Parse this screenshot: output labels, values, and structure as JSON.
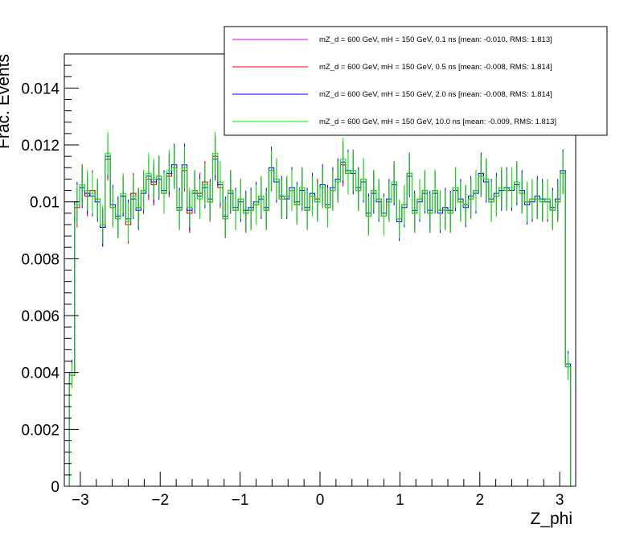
{
  "chart_data": {
    "type": "line",
    "xlabel": "Z_phi",
    "ylabel": "Frac. Events",
    "xlim": [
      -3.2,
      3.2
    ],
    "ylim": [
      0,
      0.0152
    ],
    "x_ticks": [
      -3,
      -2,
      -1,
      0,
      1,
      2,
      3
    ],
    "x_tick_labels": [
      "−3",
      "−2",
      "−1",
      "0",
      "1",
      "2",
      "3"
    ],
    "y_ticks": [
      0,
      0.002,
      0.004,
      0.006,
      0.008,
      0.01,
      0.012,
      0.014
    ],
    "y_tick_labels": [
      "0",
      "0.002",
      "0.004",
      "0.006",
      "0.008",
      "0.01",
      "0.012",
      "0.014"
    ],
    "grid": false,
    "legend_position": "top-right",
    "bins": 100,
    "bin_range": [
      -3.2,
      3.2
    ],
    "series": [
      {
        "name": "mZ_d = 600 GeV, mH = 150 GeV, 0.1 ns [mean: -0.010, RMS: 1.813]",
        "color": "#e000e0",
        "values": [
          0.0,
          0.0039,
          0.0098,
          0.0106,
          0.0102,
          0.0104,
          0.0101,
          0.0091,
          0.0115,
          0.0098,
          0.0094,
          0.0102,
          0.0092,
          0.0103,
          0.0098,
          0.0104,
          0.0108,
          0.0106,
          0.0109,
          0.0103,
          0.0109,
          0.0112,
          0.0097,
          0.0111,
          0.0096,
          0.0104,
          0.0103,
          0.0107,
          0.01,
          0.0116,
          0.0105,
          0.0094,
          0.0104,
          0.0097,
          0.0101,
          0.0096,
          0.0097,
          0.0099,
          0.0102,
          0.0097,
          0.0111,
          0.0108,
          0.0101,
          0.0102,
          0.0104,
          0.0099,
          0.0105,
          0.0097,
          0.0102,
          0.0101,
          0.0105,
          0.0098,
          0.0104,
          0.0107,
          0.0113,
          0.011,
          0.0111,
          0.0104,
          0.0108,
          0.0095,
          0.0104,
          0.0101,
          0.0095,
          0.01,
          0.0107,
          0.0094,
          0.0099,
          0.011,
          0.0096,
          0.0101,
          0.0104,
          0.0096,
          0.0104,
          0.0097,
          0.0097,
          0.0096,
          0.0105,
          0.01,
          0.0099,
          0.0101,
          0.0104,
          0.0109,
          0.0108,
          0.01,
          0.0102,
          0.0105,
          0.0104,
          0.0105,
          0.0107,
          0.0103,
          0.01,
          0.0101,
          0.0101,
          0.01,
          0.0101,
          0.0097,
          0.01,
          0.011,
          0.0042,
          0.0
        ]
      },
      {
        "name": "mZ_d = 600 GeV, mH = 150 GeV, 0.5 ns [mean: -0.008, RMS: 1.814]",
        "color": "#ff0000",
        "values": [
          0.0,
          0.0039,
          0.0098,
          0.0106,
          0.0102,
          0.0104,
          0.0101,
          0.0091,
          0.0115,
          0.0098,
          0.0094,
          0.0102,
          0.0092,
          0.0103,
          0.0098,
          0.0104,
          0.0108,
          0.0106,
          0.0109,
          0.0103,
          0.0109,
          0.0112,
          0.0097,
          0.0111,
          0.0096,
          0.0104,
          0.0103,
          0.0107,
          0.01,
          0.0116,
          0.0105,
          0.0094,
          0.0104,
          0.0097,
          0.0101,
          0.0096,
          0.0097,
          0.0099,
          0.0102,
          0.0097,
          0.0111,
          0.0108,
          0.0101,
          0.0102,
          0.0104,
          0.0099,
          0.0105,
          0.0097,
          0.0102,
          0.0101,
          0.0105,
          0.0098,
          0.0104,
          0.0107,
          0.0113,
          0.011,
          0.0111,
          0.0104,
          0.0108,
          0.0095,
          0.0104,
          0.0101,
          0.0095,
          0.01,
          0.0107,
          0.0094,
          0.0099,
          0.011,
          0.0096,
          0.0101,
          0.0104,
          0.0096,
          0.0104,
          0.0097,
          0.0097,
          0.0096,
          0.0105,
          0.01,
          0.0099,
          0.0101,
          0.0104,
          0.0109,
          0.0108,
          0.01,
          0.0102,
          0.0105,
          0.0104,
          0.0105,
          0.0107,
          0.0103,
          0.01,
          0.0101,
          0.0101,
          0.01,
          0.0101,
          0.0097,
          0.01,
          0.011,
          0.0042,
          0.0
        ]
      },
      {
        "name": "mZ_d = 600 GeV, mH = 150 GeV, 2.0 ns [mean: -0.008, RMS: 1.814]",
        "color": "#0000ff",
        "values": [
          0.0,
          0.004,
          0.01,
          0.0105,
          0.0103,
          0.0102,
          0.01,
          0.0091,
          0.0116,
          0.0099,
          0.0095,
          0.0102,
          0.0094,
          0.0101,
          0.0097,
          0.0103,
          0.0109,
          0.0107,
          0.0108,
          0.0104,
          0.011,
          0.0113,
          0.0098,
          0.0113,
          0.0097,
          0.0103,
          0.0102,
          0.0105,
          0.0101,
          0.0115,
          0.0106,
          0.0095,
          0.0103,
          0.0098,
          0.01,
          0.0097,
          0.0098,
          0.01,
          0.0101,
          0.0098,
          0.0112,
          0.0107,
          0.0102,
          0.0101,
          0.0105,
          0.01,
          0.0104,
          0.0098,
          0.0103,
          0.01,
          0.0106,
          0.0099,
          0.0105,
          0.0108,
          0.0114,
          0.0111,
          0.011,
          0.0105,
          0.0107,
          0.0096,
          0.0103,
          0.01,
          0.0096,
          0.0101,
          0.0106,
          0.0093,
          0.0098,
          0.0109,
          0.0097,
          0.01,
          0.0103,
          0.0097,
          0.0103,
          0.0096,
          0.0098,
          0.0097,
          0.0104,
          0.0101,
          0.0098,
          0.0102,
          0.0103,
          0.011,
          0.0107,
          0.0101,
          0.0103,
          0.0104,
          0.0105,
          0.0104,
          0.0106,
          0.0104,
          0.0099,
          0.01,
          0.0102,
          0.0101,
          0.01,
          0.0098,
          0.0101,
          0.0111,
          0.0043,
          0.0
        ]
      },
      {
        "name": "mZ_d = 600 GeV, mH = 150 GeV, 10.0 ns [mean: -0.009, RMS: 1.813]",
        "color": "#00ee00",
        "values": [
          0.0,
          0.0039,
          0.0099,
          0.0106,
          0.0104,
          0.0103,
          0.0101,
          0.0092,
          0.0117,
          0.0098,
          0.0094,
          0.0103,
          0.0093,
          0.0102,
          0.0098,
          0.0104,
          0.011,
          0.0108,
          0.0109,
          0.0103,
          0.0111,
          0.0112,
          0.0097,
          0.0112,
          0.0098,
          0.0104,
          0.0101,
          0.0106,
          0.01,
          0.0117,
          0.0107,
          0.0094,
          0.0104,
          0.0097,
          0.0101,
          0.0096,
          0.0097,
          0.0099,
          0.0102,
          0.0097,
          0.0111,
          0.0108,
          0.0101,
          0.0102,
          0.0104,
          0.0099,
          0.0105,
          0.0097,
          0.0102,
          0.01,
          0.0105,
          0.0098,
          0.0104,
          0.0107,
          0.0115,
          0.011,
          0.0111,
          0.0104,
          0.0108,
          0.0095,
          0.0104,
          0.0101,
          0.0095,
          0.01,
          0.0107,
          0.0094,
          0.0099,
          0.011,
          0.0096,
          0.0101,
          0.0104,
          0.0096,
          0.0104,
          0.0097,
          0.0097,
          0.0096,
          0.0105,
          0.01,
          0.0099,
          0.0101,
          0.0104,
          0.0109,
          0.0108,
          0.01,
          0.0102,
          0.0105,
          0.0104,
          0.0105,
          0.0107,
          0.0103,
          0.01,
          0.0101,
          0.0101,
          0.01,
          0.0101,
          0.0097,
          0.01,
          0.011,
          0.0042,
          0.0
        ]
      }
    ]
  }
}
